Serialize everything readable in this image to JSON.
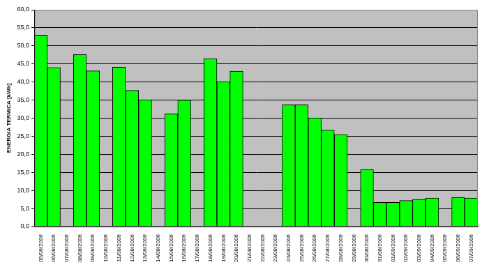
{
  "chart_data": {
    "type": "bar",
    "y_label": "ENERGIA TERMICA [kWh]",
    "categories": [
      "05/08/2006",
      "06/08/2006",
      "07/08/2006",
      "08/08/2006",
      "09/08/2006",
      "10/08/2006",
      "11/08/2006",
      "12/08/2006",
      "13/08/2006",
      "14/08/2006",
      "15/08/2006",
      "16/08/2006",
      "17/08/2006",
      "18/08/2006",
      "19/08/2006",
      "20/08/2006",
      "21/08/2006",
      "22/08/2006",
      "23/08/2006",
      "24/08/2006",
      "25/08/2006",
      "26/08/2006",
      "27/08/2006",
      "28/08/2006",
      "29/08/2006",
      "30/08/2006",
      "31/08/2006",
      "01/09/2006",
      "02/09/2006",
      "03/09/2006",
      "04/09/2006",
      "05/09/2006",
      "06/09/2006",
      "07/09/2006"
    ],
    "values": [
      53.0,
      44.0,
      null,
      47.6,
      43.1,
      null,
      44.1,
      37.7,
      35.1,
      null,
      31.2,
      35.0,
      null,
      46.5,
      40.1,
      43.0,
      null,
      null,
      null,
      33.7,
      33.7,
      30.1,
      26.7,
      25.5,
      null,
      15.8,
      6.7,
      6.7,
      7.2,
      7.5,
      7.9,
      null,
      8.1,
      7.9
    ],
    "color": "#00ff00",
    "ylim": [
      0,
      60
    ],
    "yticks": [
      {
        "value": 0,
        "label": "0,0"
      },
      {
        "value": 5,
        "label": "5,0"
      },
      {
        "value": 10,
        "label": "10,0"
      },
      {
        "value": 15,
        "label": "15,0"
      },
      {
        "value": 20,
        "label": "20,0"
      },
      {
        "value": 25,
        "label": "25,0"
      },
      {
        "value": 30,
        "label": "30,0"
      },
      {
        "value": 35,
        "label": "35,0"
      },
      {
        "value": 40,
        "label": "40,0"
      },
      {
        "value": 45,
        "label": "45,0"
      },
      {
        "value": 50,
        "label": "50,0"
      },
      {
        "value": 55,
        "label": "55,0"
      },
      {
        "value": 60,
        "label": "60,0"
      }
    ],
    "grid": true,
    "tick_labels": true
  }
}
